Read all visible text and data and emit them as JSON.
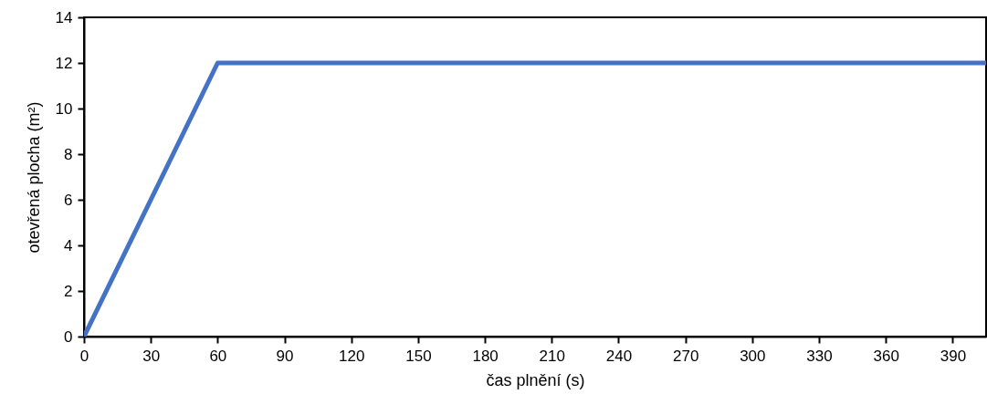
{
  "chart_data": {
    "type": "line",
    "xlabel": "čas plnění (s)",
    "ylabel": "otevřená plocha (m²)",
    "x": [
      0,
      60,
      405
    ],
    "series": [
      {
        "color": "#4472c4",
        "values": [
          0,
          12,
          12
        ]
      }
    ],
    "xlim": [
      0,
      405
    ],
    "xticks": [
      0,
      30,
      60,
      90,
      120,
      150,
      180,
      210,
      240,
      270,
      300,
      330,
      360,
      390
    ],
    "ylim": [
      0,
      14
    ],
    "yticks": [
      0,
      2,
      4,
      6,
      8,
      10,
      12,
      14
    ],
    "grid": false,
    "marker": "none",
    "line_style": "solid"
  }
}
